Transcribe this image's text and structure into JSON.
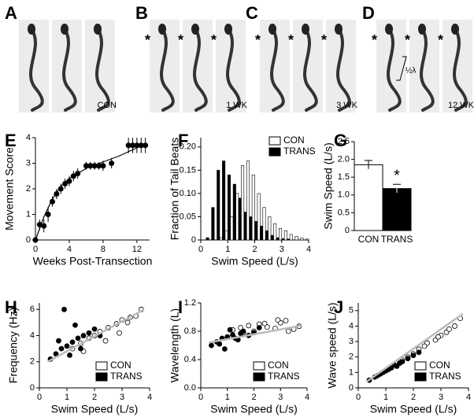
{
  "photos": [
    {
      "label": "A",
      "caption": "CON"
    },
    {
      "label": "B",
      "caption": "1 WK",
      "asterisks": [
        "*",
        "*",
        "*"
      ]
    },
    {
      "label": "C",
      "caption": "3 WK",
      "asterisks": [
        "*",
        "*",
        "*"
      ]
    },
    {
      "label": "D",
      "caption": "12 WK",
      "asterisks": [
        "*",
        "*",
        "*"
      ],
      "note": "½λ"
    }
  ],
  "chart_data": [
    {
      "type": "errorline",
      "label": "E",
      "xlabel": "Weeks Post-Transection",
      "ylabel": "Movement Score",
      "xlim": [
        0,
        13.5
      ],
      "xticks": [
        0,
        4,
        8,
        12
      ],
      "ylim": [
        0,
        4
      ],
      "yticks": [
        0,
        1,
        2,
        3,
        4
      ],
      "series": [
        {
          "color": "#000000",
          "x": [
            0,
            0.5,
            1,
            1.5,
            2,
            2.5,
            3,
            3.5,
            4,
            4.5,
            5,
            6,
            6.5,
            7,
            7.5,
            8,
            9,
            11,
            11.5,
            12,
            12.5,
            13
          ],
          "values": [
            0,
            0.6,
            0.55,
            1.0,
            1.5,
            1.8,
            2.0,
            2.2,
            2.3,
            2.5,
            2.6,
            2.9,
            2.9,
            2.9,
            2.9,
            2.9,
            3.0,
            3.7,
            3.7,
            3.7,
            3.7,
            3.7
          ],
          "errors": [
            0,
            0.2,
            0.25,
            0.3,
            0.2,
            0.2,
            0.2,
            0.2,
            0.2,
            0.2,
            0.2,
            0.15,
            0.15,
            0.15,
            0.15,
            0.2,
            0.2,
            0.3,
            0.3,
            0.3,
            0.3,
            0.3
          ]
        }
      ],
      "fit": {
        "x": [
          0,
          1,
          2,
          3,
          4,
          6,
          8,
          10,
          13
        ],
        "values": [
          0,
          0.9,
          1.6,
          2.1,
          2.4,
          2.8,
          3.05,
          3.3,
          3.75
        ]
      }
    },
    {
      "type": "histogram",
      "label": "F",
      "xlabel": "Swim Speed (L/s)",
      "ylabel": "Fraction of Tail Beats",
      "xlim": [
        0,
        4
      ],
      "xticks": [
        0,
        1,
        2,
        3,
        4
      ],
      "ylim": [
        0,
        0.22
      ],
      "yticks": [
        0,
        0.05,
        {
          "value": 0.1,
          "label": "0.10"
        },
        0.15,
        {
          "value": 0.2,
          "label": "0.20"
        }
      ],
      "bins": [
        0,
        0.2,
        0.4,
        0.6,
        0.8,
        1.0,
        1.2,
        1.4,
        1.6,
        1.8,
        2.0,
        2.2,
        2.4,
        2.6,
        2.8,
        3.0,
        3.2,
        3.4,
        3.6,
        3.8,
        4.0
      ],
      "series": [
        {
          "name": "CON",
          "color": "#ffffff",
          "values": [
            0,
            0,
            0,
            0.005,
            0.02,
            0.05,
            0.1,
            0.16,
            0.17,
            0.14,
            0.1,
            0.07,
            0.05,
            0.035,
            0.025,
            0.02,
            0.012,
            0.008,
            0.004,
            0.002
          ]
        },
        {
          "name": "TRANS",
          "color": "#000000",
          "values": [
            0,
            0.005,
            0.07,
            0.15,
            0.17,
            0.14,
            0.12,
            0.09,
            0.06,
            0.05,
            0.04,
            0.03,
            0.02,
            0.01,
            0.005,
            0.003,
            0.002,
            0,
            0,
            0
          ]
        }
      ]
    },
    {
      "type": "bar",
      "label": "G",
      "ylabel": "Swim Speed (L/s)",
      "categories": [
        "CON",
        "TRANS"
      ],
      "values": [
        1.85,
        1.18
      ],
      "errors": [
        0.12,
        0.12
      ],
      "colors": [
        "#ffffff",
        "#000000"
      ],
      "annotation": "*",
      "ylim": [
        0,
        2.5
      ],
      "yticks": [
        0,
        0.5,
        {
          "value": 1,
          "label": "1.0"
        },
        1.5,
        {
          "value": 2,
          "label": "2.0"
        },
        2.5
      ]
    },
    {
      "type": "scatter",
      "label": "H",
      "xlabel": "Swim Speed (L/s)",
      "ylabel": "Frequency (Hz)",
      "xlim": [
        0,
        4
      ],
      "xticks": [
        0,
        1,
        2,
        3,
        4
      ],
      "ylim": [
        0,
        6.5
      ],
      "yticks": [
        0,
        2,
        4,
        6
      ],
      "series": [
        {
          "name": "CON",
          "color": "#ffffff",
          "x": [
            1.2,
            1.5,
            1.8,
            2.0,
            2.2,
            2.5,
            2.8,
            3.0,
            3.2,
            3.5,
            3.7,
            1.6,
            2.4,
            2.9,
            3.3
          ],
          "values": [
            3.0,
            3.4,
            3.8,
            4.0,
            4.3,
            4.6,
            4.9,
            5.2,
            5.0,
            5.5,
            6.0,
            2.8,
            3.6,
            4.2,
            5.4
          ]
        },
        {
          "name": "TRANS",
          "color": "#000000",
          "x": [
            0.4,
            0.6,
            0.8,
            1.0,
            1.2,
            1.4,
            1.6,
            1.8,
            2.0,
            0.9,
            1.1,
            1.3,
            0.7,
            1.5,
            2.2
          ],
          "values": [
            2.2,
            2.6,
            3.0,
            3.2,
            3.5,
            3.8,
            4.0,
            4.2,
            4.5,
            6.0,
            2.5,
            4.8,
            3.6,
            3.0,
            4.0
          ]
        }
      ],
      "fit": {
        "x": [
          0.3,
          3.8
        ],
        "values": [
          2.0,
          6.0
        ]
      }
    },
    {
      "type": "scatter",
      "label": "I",
      "xlabel": "Swim Speed (L/s)",
      "ylabel": "Wavelength (L)",
      "xlim": [
        0,
        4
      ],
      "xticks": [
        0,
        1,
        2,
        3,
        4
      ],
      "ylim": [
        0,
        1.2
      ],
      "yticks": [
        {
          "value": 0,
          "label": "0.0"
        },
        0.4,
        0.8,
        1.2
      ],
      "series": [
        {
          "name": "CON",
          "color": "#ffffff",
          "x": [
            1.2,
            1.5,
            1.8,
            2.0,
            2.2,
            2.5,
            2.8,
            3.0,
            3.2,
            3.5,
            3.7,
            1.6,
            2.4,
            2.9,
            3.3
          ],
          "values": [
            0.82,
            0.85,
            0.88,
            0.8,
            0.9,
            0.86,
            0.84,
            0.92,
            0.95,
            0.83,
            0.87,
            0.78,
            0.91,
            0.96,
            0.8
          ]
        },
        {
          "name": "TRANS",
          "color": "#000000",
          "x": [
            0.4,
            0.6,
            0.8,
            1.0,
            1.2,
            1.4,
            1.6,
            1.8,
            2.0,
            0.9,
            1.1,
            1.3,
            0.7,
            1.5,
            2.2
          ],
          "values": [
            0.6,
            0.65,
            0.7,
            0.72,
            0.75,
            0.68,
            0.8,
            0.74,
            0.78,
            0.55,
            0.82,
            0.7,
            0.62,
            0.77,
            0.85
          ]
        }
      ],
      "fit": {
        "x": [
          0.3,
          3.8
        ],
        "values": [
          0.64,
          0.88
        ]
      }
    },
    {
      "type": "scatter",
      "label": "J",
      "xlabel": "Swim Speed (L/s)",
      "ylabel": "Wave speed (L/s)",
      "xlim": [
        0,
        4
      ],
      "xticks": [
        0,
        1,
        2,
        3,
        4
      ],
      "ylim": [
        0,
        5.5
      ],
      "yticks": [
        0,
        1,
        2,
        3,
        4,
        5
      ],
      "series": [
        {
          "name": "CON",
          "color": "#ffffff",
          "x": [
            1.2,
            1.5,
            1.8,
            2.0,
            2.2,
            2.5,
            2.8,
            3.0,
            3.2,
            3.5,
            3.7,
            1.6,
            2.4,
            2.9,
            3.3
          ],
          "values": [
            1.3,
            1.6,
            2.0,
            2.2,
            2.5,
            2.9,
            3.1,
            3.4,
            3.6,
            4.0,
            4.5,
            1.8,
            2.7,
            3.3,
            3.8
          ]
        },
        {
          "name": "TRANS",
          "color": "#000000",
          "x": [
            0.4,
            0.6,
            0.8,
            1.0,
            1.2,
            1.4,
            1.6,
            1.8,
            2.0,
            0.9,
            1.1,
            1.3,
            0.7,
            1.5,
            2.2
          ],
          "values": [
            0.5,
            0.7,
            0.9,
            1.1,
            1.3,
            1.4,
            1.7,
            1.9,
            2.1,
            1.0,
            1.2,
            1.5,
            0.8,
            1.6,
            2.3
          ]
        }
      ],
      "fit": {
        "x": [
          0.3,
          3.8
        ],
        "values": [
          0.4,
          4.8
        ]
      }
    }
  ]
}
